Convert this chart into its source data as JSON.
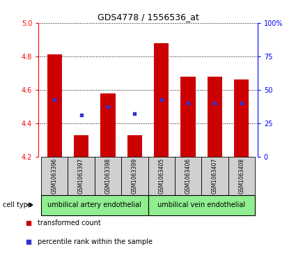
{
  "title": "GDS4778 / 1556536_at",
  "samples": [
    "GSM1063396",
    "GSM1063397",
    "GSM1063398",
    "GSM1063399",
    "GSM1063405",
    "GSM1063406",
    "GSM1063407",
    "GSM1063408"
  ],
  "transformed_counts": [
    4.81,
    4.33,
    4.58,
    4.33,
    4.88,
    4.68,
    4.68,
    4.66
  ],
  "percentile_y_values": [
    4.54,
    4.45,
    4.5,
    4.46,
    4.54,
    4.52,
    4.52,
    4.52
  ],
  "bar_bottom": 4.2,
  "ylim_left": [
    4.2,
    5.0
  ],
  "ylim_right": [
    0,
    100
  ],
  "yticks_left": [
    4.2,
    4.4,
    4.6,
    4.8,
    5.0
  ],
  "yticks_right": [
    0,
    25,
    50,
    75,
    100
  ],
  "ytick_labels_right": [
    "0",
    "25",
    "50",
    "75",
    "100%"
  ],
  "bar_color": "#CC0000",
  "dot_color": "#3333CC",
  "bar_width": 0.55,
  "groups": [
    {
      "label": "umbilical artery endothelial",
      "start": 0,
      "end": 3,
      "color": "#90EE90"
    },
    {
      "label": "umbilical vein endothelial",
      "start": 4,
      "end": 7,
      "color": "#90EE90"
    }
  ],
  "cell_type_label": "cell type",
  "legend_items": [
    {
      "label": "transformed count",
      "color": "#CC0000"
    },
    {
      "label": "percentile rank within the sample",
      "color": "#3333CC"
    }
  ],
  "sample_box_color": "#d0d0d0",
  "divider_after": 3,
  "grid_linestyle": "dotted"
}
